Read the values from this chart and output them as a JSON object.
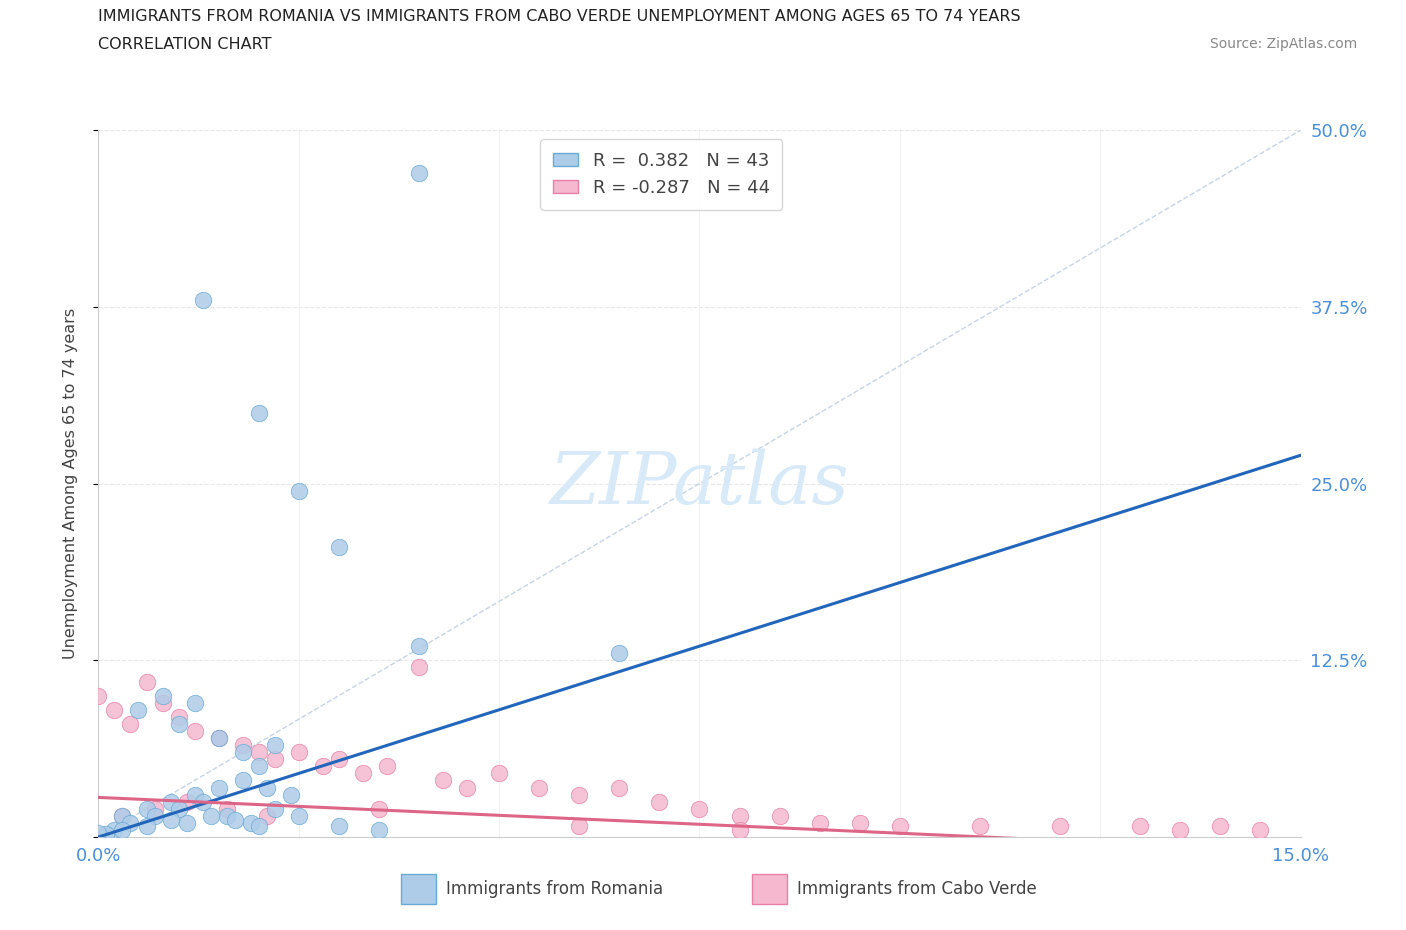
{
  "title_line1": "IMMIGRANTS FROM ROMANIA VS IMMIGRANTS FROM CABO VERDE UNEMPLOYMENT AMONG AGES 65 TO 74 YEARS",
  "title_line2": "CORRELATION CHART",
  "source_text": "Source: ZipAtlas.com",
  "ylabel": "Unemployment Among Ages 65 to 74 years",
  "xmin": 0.0,
  "xmax": 0.15,
  "ymin": 0.0,
  "ymax": 0.5,
  "romania_R": 0.382,
  "romania_N": 43,
  "caboverde_R": -0.287,
  "caboverde_N": 44,
  "romania_scatter_color": "#aecce8",
  "romania_scatter_edge": "#6aaad4",
  "caboverde_scatter_color": "#f5b8ce",
  "caboverde_scatter_edge": "#e880a8",
  "romania_line_color": "#2266bb",
  "caboverde_line_color": "#dd6688",
  "diag_color": "#c8d8ec",
  "grid_color": "#e0e0e0",
  "axis_color": "#4a90d9",
  "watermark_color": "#ddeeff",
  "title_color": "#222222",
  "source_color": "#888888",
  "romania_line_x": [
    0.0,
    0.15
  ],
  "romania_line_y": [
    0.0,
    0.27
  ],
  "caboverde_line_x": [
    0.0,
    0.15
  ],
  "caboverde_line_y": [
    0.028,
    -0.01
  ],
  "legend_r_label": "R =  0.382   N = 43",
  "legend_cv_label": "R = -0.287   N = 44",
  "bottom_label1": "Immigrants from Romania",
  "bottom_label2": "Immigrants from Cabo Verde"
}
